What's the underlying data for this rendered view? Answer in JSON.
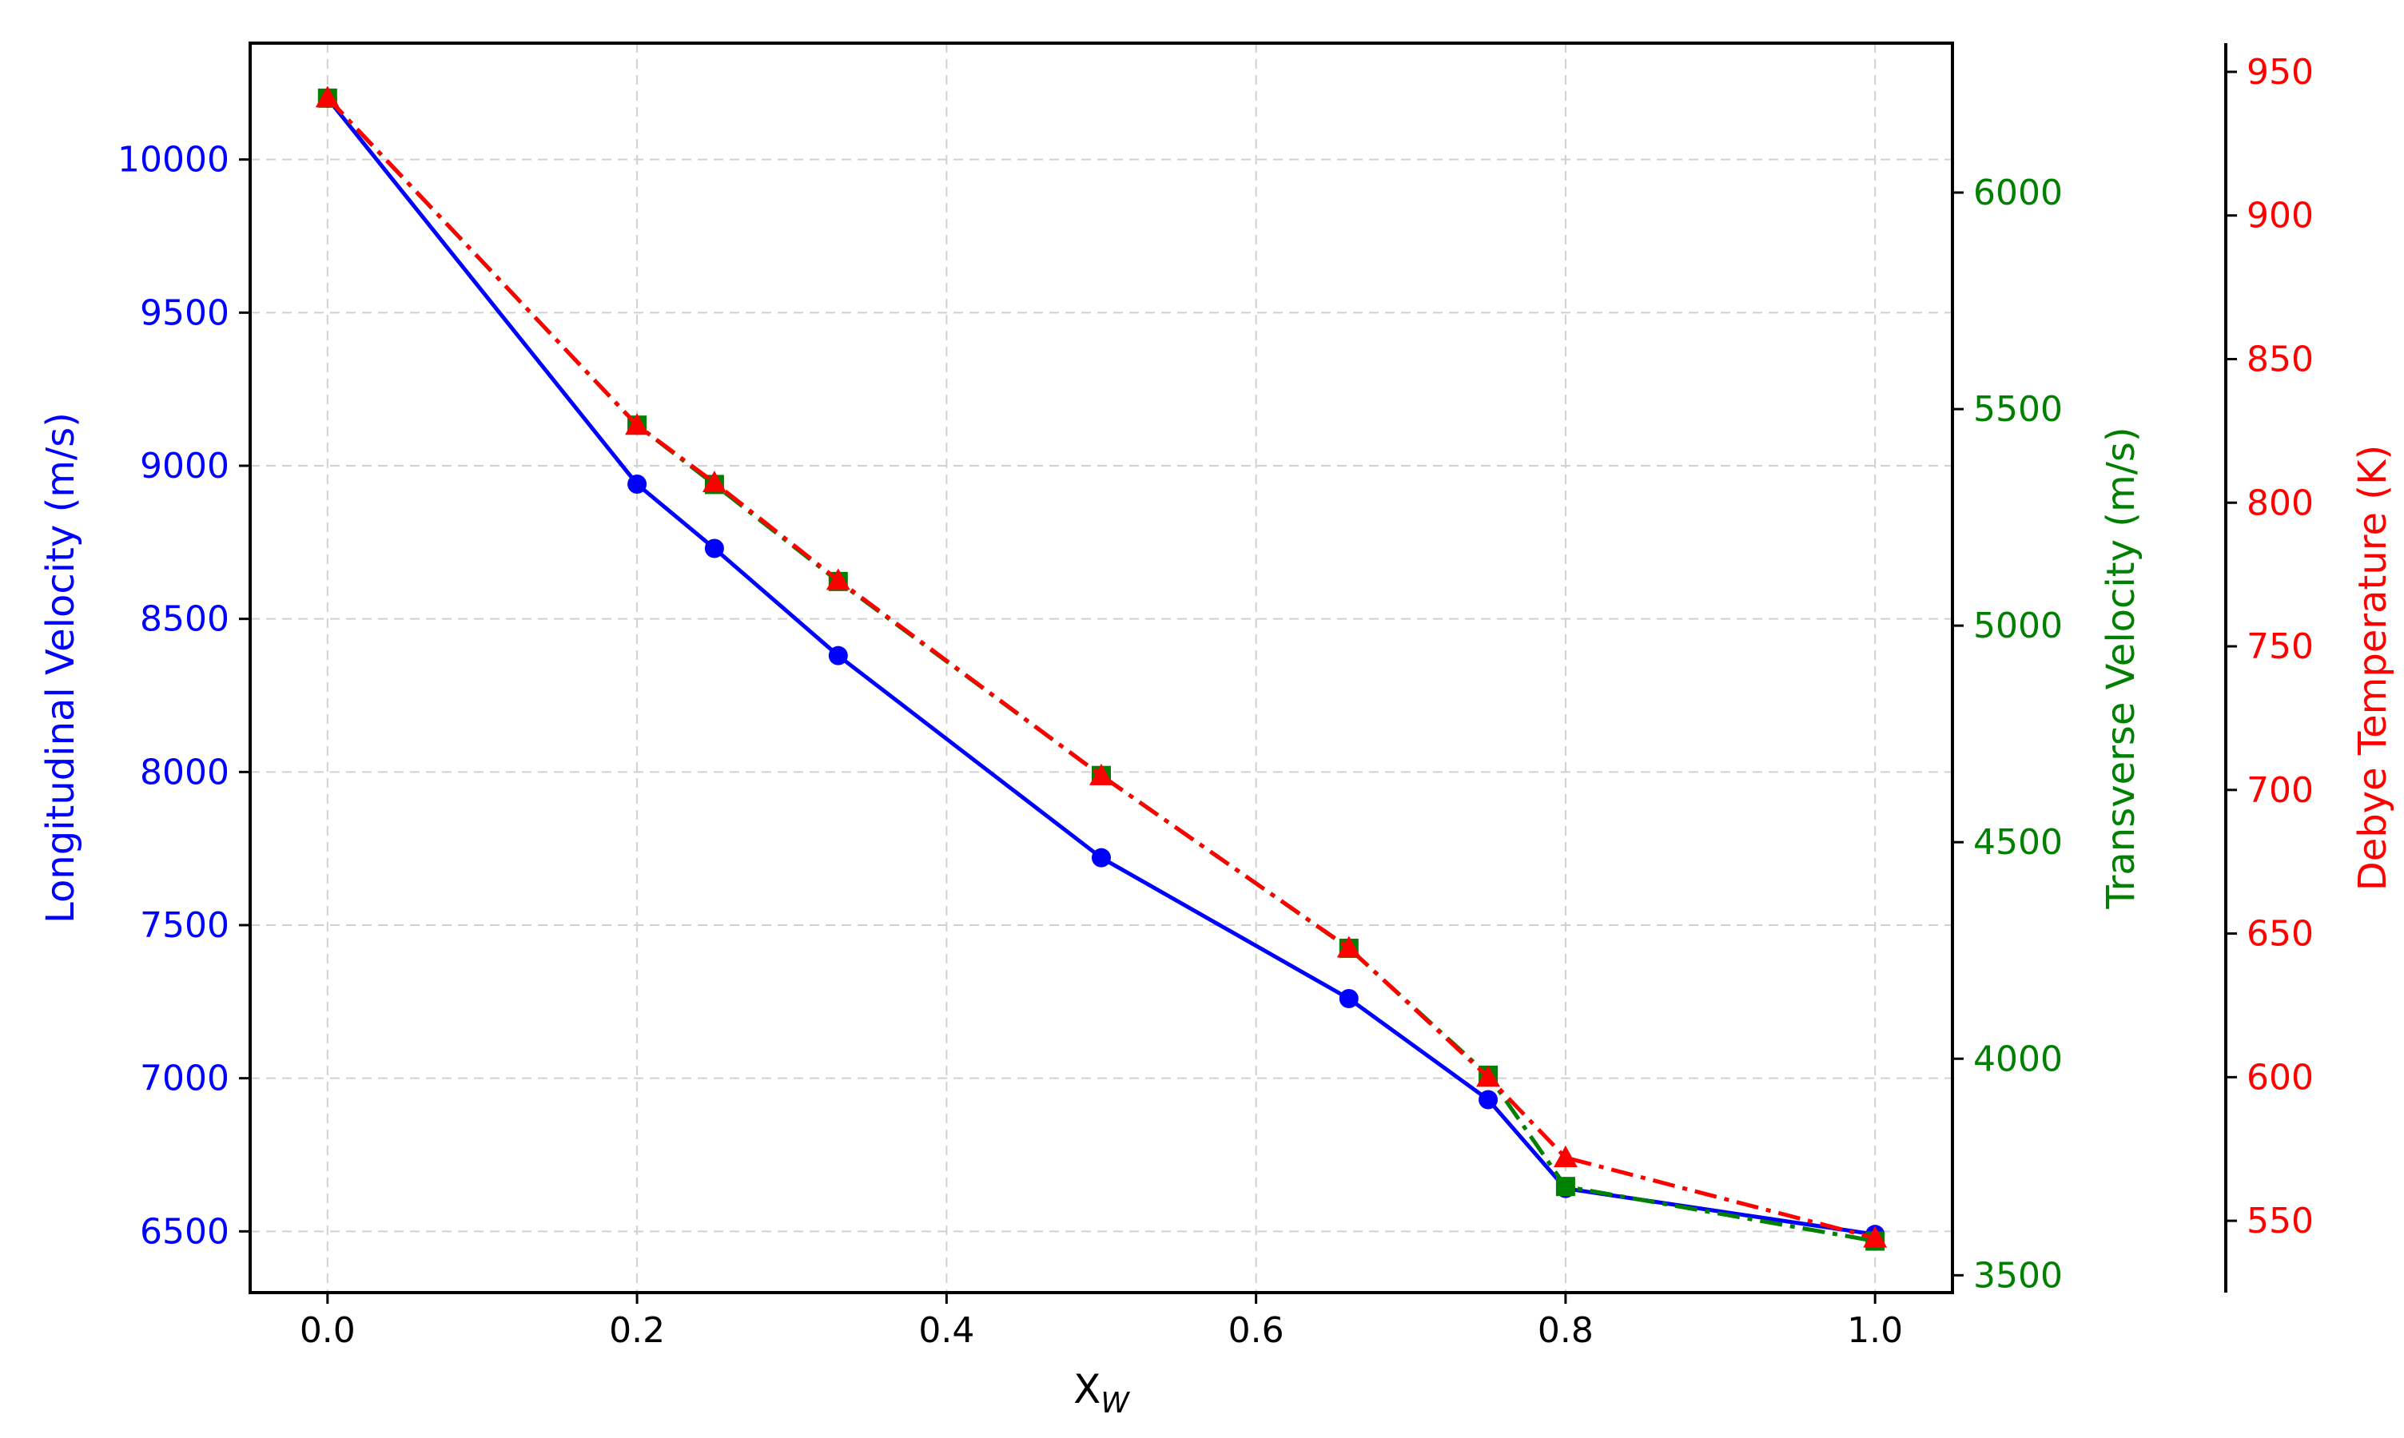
{
  "chart_data": {
    "type": "line",
    "xlabel": "X",
    "xlabel_sub": "W",
    "xlim": [
      -0.05,
      1.05
    ],
    "xticks": [
      0.0,
      0.2,
      0.4,
      0.6,
      0.8,
      1.0
    ],
    "x": [
      0.0,
      0.2,
      0.25,
      0.33,
      0.5,
      0.66,
      0.75,
      0.8,
      1.0
    ],
    "grid": true,
    "axes": [
      {
        "id": "left",
        "label": "Longitudinal Velocity (m/s)",
        "color": "#0000ff",
        "ylim": [
          6300,
          10380
        ],
        "ticks": [
          6500,
          7000,
          7500,
          8000,
          8500,
          9000,
          9500,
          10000
        ]
      },
      {
        "id": "right1",
        "label": "Transverse Velocity (m/s)",
        "color": "#008000",
        "ylim": [
          3460,
          6345
        ],
        "ticks": [
          3500,
          4000,
          4500,
          5000,
          5500,
          6000
        ]
      },
      {
        "id": "right2",
        "label": "Debye Temperature (K)",
        "color": "#ff0000",
        "ylim": [
          525,
          960
        ],
        "ticks": [
          550,
          600,
          650,
          700,
          750,
          800,
          850,
          900,
          950
        ]
      }
    ],
    "series": [
      {
        "axis": "left",
        "color": "#0000ff",
        "style": "solid",
        "marker": "circle",
        "values": [
          10200,
          8940,
          8730,
          8380,
          7720,
          7260,
          6930,
          6640,
          6490
        ]
      },
      {
        "axis": "right1",
        "color": "#008000",
        "style": "dashdot",
        "marker": "square",
        "values": [
          6218,
          5463,
          5326,
          5102,
          4654,
          4255,
          3962,
          3705,
          3579
        ]
      },
      {
        "axis": "right2",
        "color": "#ff0000",
        "style": "dashdot",
        "marker": "triangle",
        "values": [
          941,
          827,
          807,
          773,
          705,
          645,
          600,
          572,
          544
        ]
      }
    ]
  }
}
